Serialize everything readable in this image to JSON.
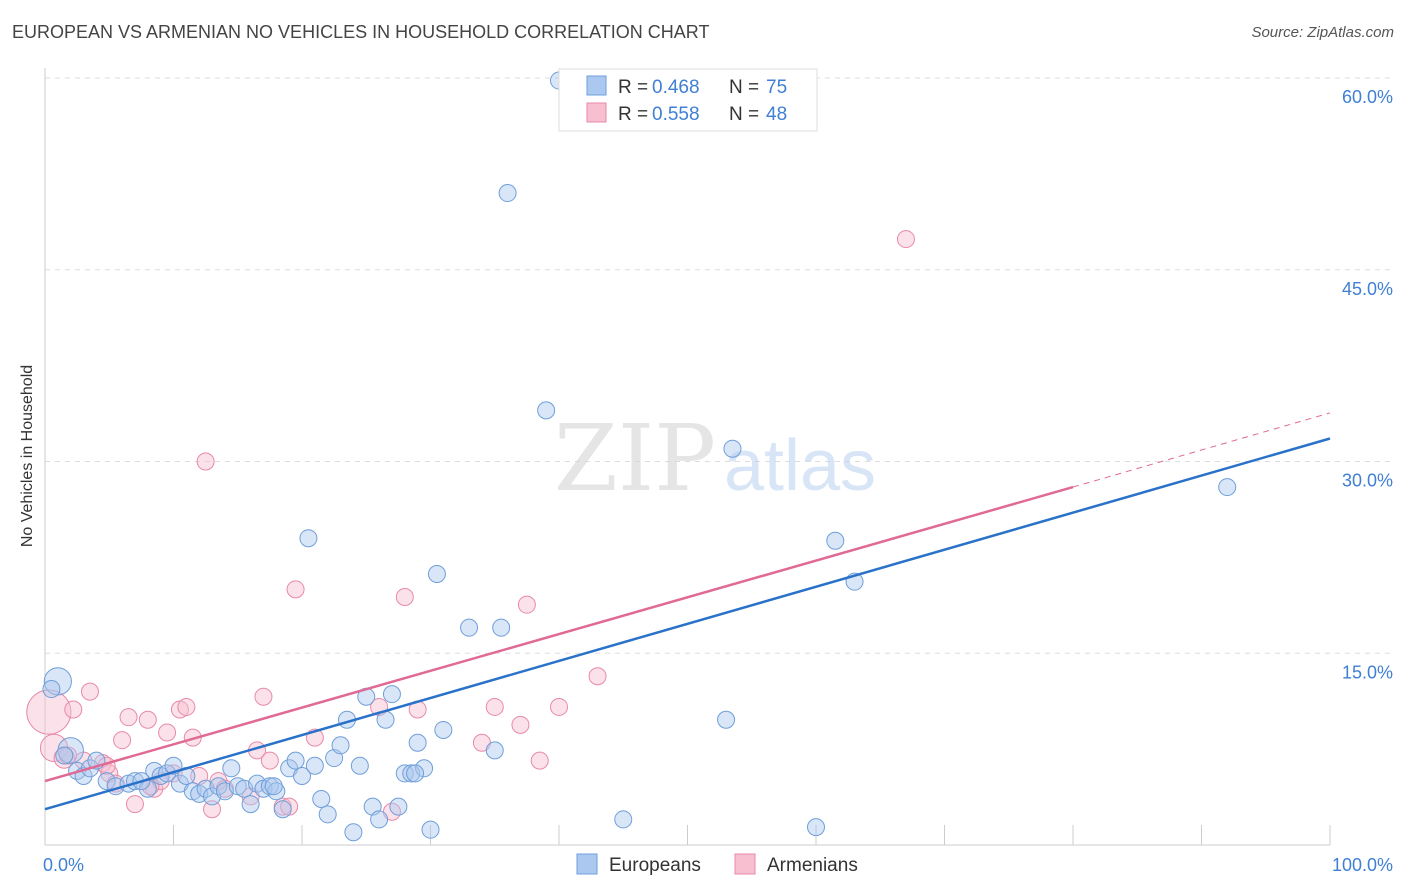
{
  "header": {
    "title": "EUROPEAN VS ARMENIAN NO VEHICLES IN HOUSEHOLD CORRELATION CHART",
    "source": "Source: ZipAtlas.com"
  },
  "watermark": {
    "zip": "ZIP",
    "atlas": "atlas"
  },
  "colors": {
    "blue_fill": "#aac8f0",
    "blue_stroke": "#6f9fd8",
    "blue_line": "#2a72c9",
    "pink_fill": "#f7bfd0",
    "pink_stroke": "#e88aa8",
    "pink_line": "#e06a95",
    "tick_text": "#3f7fd4",
    "grid": "#dddddd"
  },
  "chart_data": {
    "type": "scatter",
    "title": "EUROPEAN VS ARMENIAN NO VEHICLES IN HOUSEHOLD CORRELATION CHART",
    "ylabel": "No Vehicles in Household",
    "xlabel": "",
    "xlim": [
      0,
      100
    ],
    "ylim": [
      0,
      60
    ],
    "x_ticks": [
      {
        "value": 0,
        "label": "0.0%"
      },
      {
        "value": 100,
        "label": "100.0%"
      }
    ],
    "y_ticks": [
      {
        "value": 15,
        "label": "15.0%"
      },
      {
        "value": 30,
        "label": "30.0%"
      },
      {
        "value": 45,
        "label": "45.0%"
      },
      {
        "value": 60,
        "label": "60.0%"
      }
    ],
    "grid": true,
    "legend": {
      "placement": "top-center",
      "entries": [
        {
          "r_label": "R =",
          "r_value": "0.468",
          "n_label": "N =",
          "n_value": "75"
        },
        {
          "r_label": "R =",
          "r_value": "0.558",
          "n_label": "N =",
          "n_value": "48"
        }
      ]
    },
    "bottom_legend": [
      "Europeans",
      "Armenians"
    ],
    "series": [
      {
        "name": "Europeans",
        "color": "blue",
        "trend": {
          "x": [
            0,
            100
          ],
          "y": [
            2.8,
            31.8
          ],
          "dashed_to": null
        },
        "points": [
          [
            1.0,
            12.8,
            1.6
          ],
          [
            0.5,
            12.2,
            1
          ],
          [
            2.0,
            7.4,
            1.5
          ],
          [
            1.5,
            7.0,
            1
          ],
          [
            2.5,
            5.8,
            1
          ],
          [
            3.0,
            5.4,
            1
          ],
          [
            3.5,
            6.0,
            1
          ],
          [
            4.0,
            6.6,
            1
          ],
          [
            4.8,
            5.0,
            1
          ],
          [
            5.5,
            4.6,
            1
          ],
          [
            6.5,
            4.8,
            1
          ],
          [
            7.0,
            5.0,
            1
          ],
          [
            8.0,
            4.4,
            1
          ],
          [
            8.5,
            5.8,
            1
          ],
          [
            9.0,
            5.4,
            1
          ],
          [
            9.5,
            5.6,
            1
          ],
          [
            10.0,
            6.2,
            1
          ],
          [
            10.5,
            4.8,
            1
          ],
          [
            11.0,
            5.4,
            1
          ],
          [
            11.5,
            4.2,
            1
          ],
          [
            12.0,
            4.0,
            1
          ],
          [
            12.5,
            4.4,
            1
          ],
          [
            13.0,
            3.8,
            1
          ],
          [
            13.5,
            4.6,
            1
          ],
          [
            14.0,
            4.2,
            1
          ],
          [
            14.5,
            6.0,
            1
          ],
          [
            15.0,
            4.6,
            1
          ],
          [
            15.5,
            4.4,
            1
          ],
          [
            16.0,
            3.2,
            1
          ],
          [
            16.5,
            4.8,
            1
          ],
          [
            17.0,
            4.4,
            1
          ],
          [
            17.5,
            4.6,
            1
          ],
          [
            18.0,
            4.2,
            1
          ],
          [
            18.5,
            2.8,
            1
          ],
          [
            19.0,
            6.0,
            1
          ],
          [
            19.5,
            6.6,
            1
          ],
          [
            20.0,
            5.4,
            1
          ],
          [
            20.5,
            24.0,
            1
          ],
          [
            21.0,
            6.2,
            1
          ],
          [
            21.5,
            3.6,
            1
          ],
          [
            22.0,
            2.4,
            1
          ],
          [
            22.5,
            6.8,
            1
          ],
          [
            23.0,
            7.8,
            1
          ],
          [
            23.5,
            9.8,
            1
          ],
          [
            24.0,
            1.0,
            1
          ],
          [
            24.5,
            6.2,
            1
          ],
          [
            25.0,
            11.6,
            1
          ],
          [
            25.5,
            3.0,
            1
          ],
          [
            26.0,
            2.0,
            1
          ],
          [
            26.5,
            9.8,
            1
          ],
          [
            27.0,
            11.8,
            1
          ],
          [
            27.5,
            3.0,
            1
          ],
          [
            28.0,
            5.6,
            1
          ],
          [
            28.5,
            5.6,
            1
          ],
          [
            29.0,
            8.0,
            1
          ],
          [
            29.5,
            6.0,
            1
          ],
          [
            30.0,
            1.2,
            1
          ],
          [
            30.5,
            21.2,
            1
          ],
          [
            31.0,
            9.0,
            1
          ],
          [
            33.0,
            17.0,
            1
          ],
          [
            35.0,
            7.4,
            1
          ],
          [
            35.5,
            17.0,
            1
          ],
          [
            36.0,
            51.0,
            1
          ],
          [
            39.0,
            34.0,
            1
          ],
          [
            40.0,
            59.8,
            1
          ],
          [
            45.0,
            2.0,
            1
          ],
          [
            53.0,
            9.8,
            1
          ],
          [
            53.5,
            31.0,
            1
          ],
          [
            60.0,
            1.4,
            1
          ],
          [
            61.5,
            23.8,
            1
          ],
          [
            63.0,
            20.6,
            1
          ],
          [
            92.0,
            28.0,
            1
          ],
          [
            7.5,
            5.0,
            1
          ],
          [
            17.8,
            4.6,
            1
          ],
          [
            28.8,
            5.6,
            1
          ]
        ]
      },
      {
        "name": "Armenians",
        "color": "pink",
        "trend": {
          "x": [
            0,
            80
          ],
          "y": [
            5.0,
            28.0
          ],
          "dashed_to": {
            "x": 100,
            "y": 33.8
          }
        },
        "points": [
          [
            0.3,
            10.4,
            2.6
          ],
          [
            0.7,
            7.6,
            1.6
          ],
          [
            1.5,
            6.8,
            1.2
          ],
          [
            2.2,
            10.6,
            1
          ],
          [
            3.5,
            12.0,
            1
          ],
          [
            4.5,
            6.4,
            1
          ],
          [
            5.0,
            5.6,
            1
          ],
          [
            5.5,
            4.8,
            1
          ],
          [
            6.0,
            8.2,
            1
          ],
          [
            6.5,
            10.0,
            1
          ],
          [
            7.0,
            3.2,
            1
          ],
          [
            8.0,
            9.8,
            1
          ],
          [
            8.5,
            4.4,
            1
          ],
          [
            9.0,
            5.0,
            1
          ],
          [
            9.5,
            8.8,
            1
          ],
          [
            10.0,
            5.6,
            1
          ],
          [
            10.5,
            10.6,
            1
          ],
          [
            11.0,
            10.8,
            1
          ],
          [
            11.5,
            8.4,
            1
          ],
          [
            12.5,
            30.0,
            1
          ],
          [
            13.0,
            2.8,
            1
          ],
          [
            13.5,
            5.0,
            1
          ],
          [
            16.0,
            3.8,
            1
          ],
          [
            16.5,
            7.4,
            1
          ],
          [
            17.0,
            11.6,
            1
          ],
          [
            17.5,
            6.6,
            1
          ],
          [
            18.5,
            3.0,
            1
          ],
          [
            19.0,
            3.0,
            1
          ],
          [
            19.5,
            20.0,
            1
          ],
          [
            26.0,
            10.8,
            1
          ],
          [
            27.0,
            2.6,
            1
          ],
          [
            28.0,
            19.4,
            1
          ],
          [
            29.0,
            10.6,
            1
          ],
          [
            34.0,
            8.0,
            1
          ],
          [
            35.0,
            10.8,
            1
          ],
          [
            37.0,
            9.4,
            1
          ],
          [
            37.5,
            18.8,
            1
          ],
          [
            38.5,
            6.6,
            1
          ],
          [
            40.0,
            10.8,
            1
          ],
          [
            43.0,
            13.2,
            1
          ],
          [
            67.0,
            47.4,
            1
          ],
          [
            1.8,
            7.0,
            1
          ],
          [
            3.0,
            6.6,
            1
          ],
          [
            4.8,
            6.2,
            1
          ],
          [
            8.2,
            4.6,
            1
          ],
          [
            12.0,
            5.4,
            1
          ],
          [
            14.0,
            4.4,
            1
          ],
          [
            21.0,
            8.4,
            1
          ]
        ]
      }
    ]
  }
}
